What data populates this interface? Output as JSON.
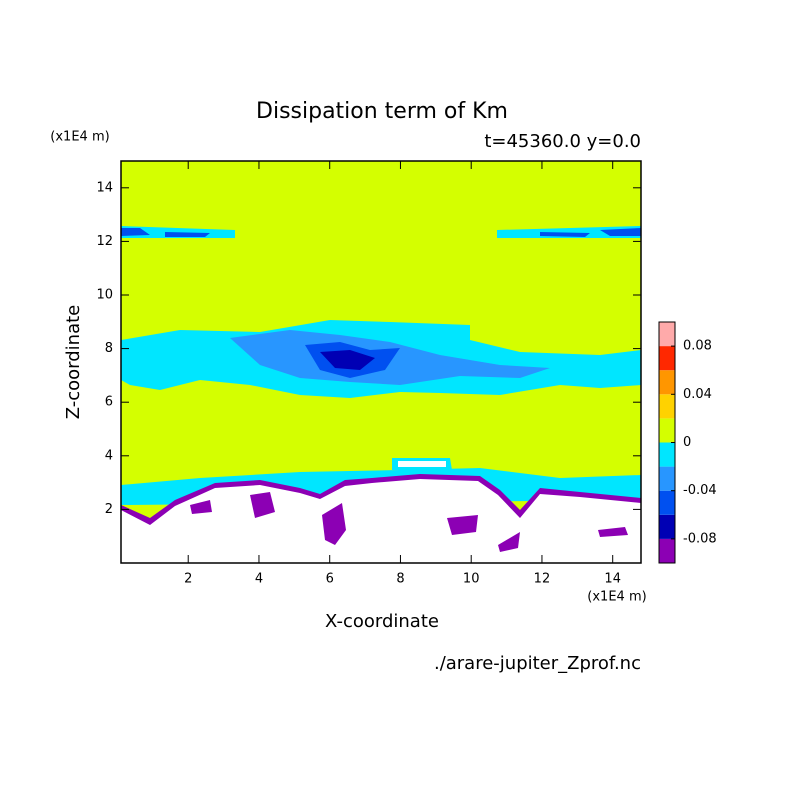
{
  "chart_data": {
    "type": "contour",
    "title": "Dissipation term of Km",
    "subtitle": "t=45360.0 y=0.0",
    "x_label": "X-coordinate",
    "y_label": "Z-coordinate",
    "x_unit": "(x1E4 m)",
    "y_unit": "(x1E4 m)",
    "footer": "./arare-jupiter_Zprof.nc",
    "xlim": [
      0.1,
      14.8
    ],
    "xticks": [
      2,
      4,
      6,
      8,
      10,
      12,
      14
    ],
    "ylim": [
      0,
      15
    ],
    "yticks": [
      2,
      4,
      6,
      8,
      10,
      12,
      14
    ],
    "colorbar": {
      "levels": [
        -0.1,
        -0.08,
        -0.06,
        -0.04,
        -0.02,
        0,
        0.02,
        0.04,
        0.06,
        0.08,
        0.1
      ],
      "colors": [
        "#8c00b4",
        "#0000b4",
        "#0050f0",
        "#2896ff",
        "#00e6ff",
        "#d4ff00",
        "#ffd200",
        "#ff9600",
        "#ff2800",
        "#ffaaaa"
      ],
      "ticks": [
        -0.08,
        -0.04,
        0,
        0.04,
        0.08
      ]
    }
  }
}
